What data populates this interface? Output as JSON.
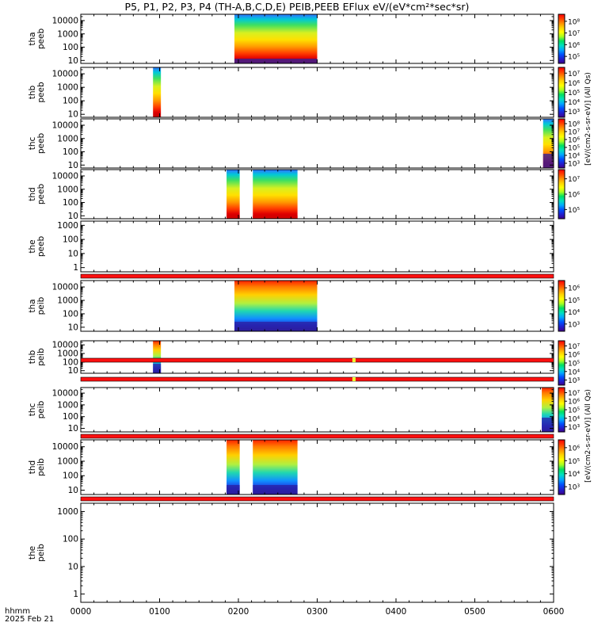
{
  "figure": {
    "title": "P5, P1, P2, P3, P4 (TH-A,B,C,D,E) PEIB,PEEB EFlux eV/(eV*cm²*sec*sr)",
    "x_axis_label": "hhmm",
    "date_label": "2025 Feb 21"
  },
  "colors": {
    "background": "#ffffff",
    "axis": "#000000",
    "quality_bar_red": "#ff1010",
    "quality_bar_yellow": "#f0ff30",
    "fill_flag_black": "#000000"
  },
  "colorscale": "rainbow (purple-blue-cyan-green-yellow-red)",
  "chart_data": {
    "type": "heatmap",
    "x_unit": "UT hhmm",
    "xlim": [
      0,
      360
    ],
    "xticks": [
      {
        "v": 0,
        "label": "0000"
      },
      {
        "v": 60,
        "label": "0100"
      },
      {
        "v": 120,
        "label": "0200"
      },
      {
        "v": 180,
        "label": "0300"
      },
      {
        "v": 240,
        "label": "0400"
      },
      {
        "v": 300,
        "label": "0500"
      },
      {
        "v": 360,
        "label": "0600"
      }
    ],
    "y_scale": "log",
    "panels": [
      {
        "name": "tha_peeb",
        "ylabel": [
          "tha",
          "peeb"
        ],
        "ylim": [
          6,
          30000
        ],
        "yticks": [
          "10",
          "100",
          "1000",
          "10000"
        ],
        "coverage": [
          {
            "start": 117,
            "end": 180,
            "hi_red": 4,
            "lo_red": 0,
            "lo_dark": 1
          }
        ],
        "cbar": {
          "ticks": [
            "10⁸",
            "10⁷",
            "10⁶",
            "10⁵"
          ],
          "top_cut": "10⁸"
        }
      },
      {
        "name": "thb_peeb",
        "ylabel": [
          "thb",
          "peeb"
        ],
        "ylim": [
          6,
          30000
        ],
        "yticks": [
          "10",
          "100",
          "1000",
          "10000"
        ],
        "coverage": [
          {
            "start": 55,
            "end": 61,
            "hi_red": 3,
            "lo_red": 0,
            "lo_dark": 0
          }
        ],
        "cbar": {
          "ticks": [
            "10⁷",
            "10⁶",
            "10⁵",
            "10⁴",
            "10³"
          ],
          "top_cut": ""
        }
      },
      {
        "name": "thc_peeb",
        "ylabel": [
          "thc",
          "peeb"
        ],
        "ylim": [
          6,
          30000
        ],
        "yticks": [
          "10",
          "100",
          "1000",
          "10000"
        ],
        "coverage": [
          {
            "start": 352,
            "end": 360,
            "hi_red": 0,
            "lo_red": 0,
            "lo_dark": 3
          }
        ],
        "cbar": {
          "ticks": [
            "10⁸",
            "10⁷",
            "10⁶",
            "10⁵",
            "10⁴",
            "10³"
          ],
          "top_cut": "10⁹"
        }
      },
      {
        "name": "thd_peeb",
        "ylabel": [
          "thd",
          "peeb"
        ],
        "ylim": [
          6,
          30000
        ],
        "yticks": [
          "10",
          "100",
          "1000",
          "10000"
        ],
        "coverage": [
          {
            "start": 111,
            "end": 121,
            "hi_red": 2,
            "lo_red": 1,
            "lo_dark": 0
          },
          {
            "start": 131,
            "end": 165,
            "hi_red": 2,
            "lo_red": 1,
            "lo_dark": 0
          }
        ],
        "cbar": {
          "ticks": [
            "10⁷",
            "10⁶",
            "10⁵"
          ],
          "top_cut": "10⁸"
        }
      },
      {
        "name": "the_peeb",
        "ylabel": [
          "the",
          "peeb"
        ],
        "ylim": [
          0.5,
          2000
        ],
        "yticks": [
          "1",
          "10",
          "100",
          "1000"
        ],
        "coverage": [],
        "cbar": null
      },
      {
        "name": "tha_peib",
        "ylabel": [
          "tha",
          "peib"
        ],
        "ylim": [
          5,
          30000
        ],
        "yticks": [
          "10",
          "100",
          "1000",
          "10000"
        ],
        "coverage": [
          {
            "start": 117,
            "end": 180,
            "hi_red": 3,
            "lo_red": 0,
            "lo_dark": 2
          }
        ],
        "cbar": {
          "ticks": [
            "10⁶",
            "10⁵",
            "10⁴",
            "10³"
          ],
          "top_cut": ""
        }
      },
      {
        "name": "thb_peib",
        "ylabel": [
          "thb",
          "peib"
        ],
        "ylim": [
          5,
          30000
        ],
        "yticks": [
          "10",
          "100",
          "1000",
          "10000"
        ],
        "coverage": [
          {
            "start": 55,
            "end": 61,
            "hi_red": 2,
            "lo_red": 0,
            "lo_dark": 2
          }
        ],
        "cbar": {
          "ticks": [
            "10⁷",
            "10⁶",
            "10⁵",
            "10⁴",
            "10³"
          ],
          "top_cut": ""
        }
      },
      {
        "name": "thc_peib",
        "ylabel": [
          "thc",
          "peib"
        ],
        "ylim": [
          5,
          30000
        ],
        "yticks": [
          "10",
          "100",
          "1000",
          "10000"
        ],
        "coverage": [
          {
            "start": 351,
            "end": 360,
            "hi_red": 0,
            "lo_red": 0,
            "lo_dark": 3
          }
        ],
        "cbar": {
          "ticks": [
            "10⁷",
            "10⁶",
            "10⁵",
            "10⁴",
            "10³"
          ],
          "top_cut": ""
        }
      },
      {
        "name": "thd_peib",
        "ylabel": [
          "thd",
          "peib"
        ],
        "ylim": [
          5,
          30000
        ],
        "yticks": [
          "10",
          "100",
          "1000",
          "10000"
        ],
        "coverage": [
          {
            "start": 111,
            "end": 121,
            "hi_red": 2,
            "lo_red": 0,
            "lo_dark": 2
          },
          {
            "start": 131,
            "end": 165,
            "hi_red": 2,
            "lo_red": 0,
            "lo_dark": 2
          }
        ],
        "cbar": {
          "ticks": [
            "10⁶",
            "10⁵",
            "10⁴",
            "10³"
          ],
          "top_cut": ""
        }
      },
      {
        "name": "the_peib",
        "ylabel": [
          "the",
          "peib"
        ],
        "ylim": [
          0.5,
          2000
        ],
        "yticks": [
          "1",
          "10",
          "100",
          "1000"
        ],
        "coverage": [],
        "cbar": null
      }
    ],
    "quality_bars": [
      {
        "after_panel": 5,
        "color": "red",
        "flags": []
      },
      {
        "after_panel": 6,
        "color": "red",
        "flags": [
          {
            "x": 208,
            "color": "yellow"
          }
        ]
      },
      {
        "after_panel": 7,
        "color": "red",
        "flags": [
          {
            "x": 208,
            "color": "yellow"
          }
        ]
      },
      {
        "after_panel": 8,
        "color": "red",
        "flags": []
      },
      {
        "after_panel": 9,
        "color": "red",
        "flags": []
      }
    ],
    "colorbar_labels": [
      "[eV/(cm2-s-sr-eV)] (All Qs)",
      "[eV/(cm2-s-sr-eV)] (All Qs)"
    ]
  }
}
